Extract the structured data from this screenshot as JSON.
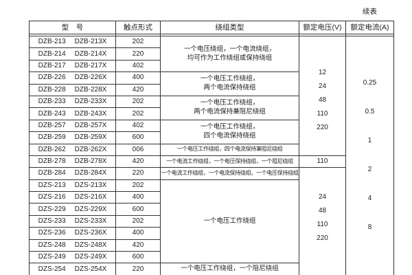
{
  "page": {
    "continued_label": "续表"
  },
  "table": {
    "headers": {
      "model": "型　号",
      "contact": "触点形式",
      "winding": "绕组类型",
      "voltage": "额定电压(V)",
      "current": "额定电流(A)"
    },
    "rows": [
      {
        "model_a": "DZB-213",
        "model_b": "DZB-213X",
        "contact": "202"
      },
      {
        "model_a": "DZB-214",
        "model_b": "DZB-214X",
        "contact": "220"
      },
      {
        "model_a": "DZB-217",
        "model_b": "DZB-217X",
        "contact": "402"
      },
      {
        "model_a": "DZB-226",
        "model_b": "DZB-226X",
        "contact": "400"
      },
      {
        "model_a": "DZB-228",
        "model_b": "DZB-228X",
        "contact": "420"
      },
      {
        "model_a": "DZB-233",
        "model_b": "DZB-233X",
        "contact": "202"
      },
      {
        "model_a": "DZB-243",
        "model_b": "DZB-243X",
        "contact": "202"
      },
      {
        "model_a": "DZB-257",
        "model_b": "DZB-257X",
        "contact": "402"
      },
      {
        "model_a": "DZB-259",
        "model_b": "DZB-259X",
        "contact": "600"
      },
      {
        "model_a": "DZB-262",
        "model_b": "DZB-262X",
        "contact": "006"
      },
      {
        "model_a": "DZB-278",
        "model_b": "DZB-278X",
        "contact": "420"
      },
      {
        "model_a": "DZB-284",
        "model_b": "DZB-284X",
        "contact": "220"
      },
      {
        "model_a": "DZS-213",
        "model_b": "DZS-213X",
        "contact": "202"
      },
      {
        "model_a": "DZS-216",
        "model_b": "DZS-216X",
        "contact": "400"
      },
      {
        "model_a": "DZS-229",
        "model_b": "DZS-229X",
        "contact": "600"
      },
      {
        "model_a": "DZS-233",
        "model_b": "DZS-233X",
        "contact": "202"
      },
      {
        "model_a": "DZS-236",
        "model_b": "DZS-236X",
        "contact": "400"
      },
      {
        "model_a": "DZS-248",
        "model_b": "DZS-248X",
        "contact": "420"
      },
      {
        "model_a": "DZS-249",
        "model_b": "DZS-249X",
        "contact": "600"
      },
      {
        "model_a": "DZS-254",
        "model_b": "DZS-254X",
        "contact": "220"
      }
    ],
    "winding_groups": [
      {
        "rows": 3,
        "small": false,
        "lines": [
          "一个电压绕组，一个电流绕组，",
          "均可作为工作绕组或保持绕组"
        ]
      },
      {
        "rows": 2,
        "small": false,
        "lines": [
          "一个电压工作绕组，",
          "两个电流保持绕组"
        ]
      },
      {
        "rows": 2,
        "small": false,
        "lines": [
          "一个电压工作绕组，",
          "两个电流保持兼阻尼绕组"
        ]
      },
      {
        "rows": 2,
        "small": false,
        "lines": [
          "一个电压工作绕组，",
          "四个电流保持绕组"
        ]
      },
      {
        "rows": 1,
        "small": true,
        "lines": [
          "一个电压工作绕组，四个电流保持兼阻尼绕组"
        ]
      },
      {
        "rows": 1,
        "small": true,
        "lines": [
          "一个电流工作绕组，一个电压保持绕组，一个阻尼绕组"
        ]
      },
      {
        "rows": 1,
        "small": true,
        "lines": [
          "一个电流工作绕组，一个电流保持绕组，一个电压保持绕组"
        ]
      },
      {
        "rows": 7,
        "small": false,
        "lines": [
          "一个电压工作绕组"
        ]
      },
      {
        "rows": 1,
        "small": false,
        "lines": [
          "一个电压工作绕组，一个阻尼绕组"
        ]
      }
    ],
    "voltage_groups": [
      {
        "rows": 10,
        "values": [
          "12",
          "24",
          "48",
          "110",
          "220"
        ]
      },
      {
        "rows": 1,
        "values": [
          "110"
        ]
      },
      {
        "rows": 9,
        "values": [
          "24",
          "48",
          "110",
          "220"
        ]
      }
    ],
    "current_groups": [
      {
        "rows": 20,
        "values": [
          "0.25",
          "0.5",
          "1",
          "2",
          "4",
          "8"
        ]
      }
    ]
  }
}
